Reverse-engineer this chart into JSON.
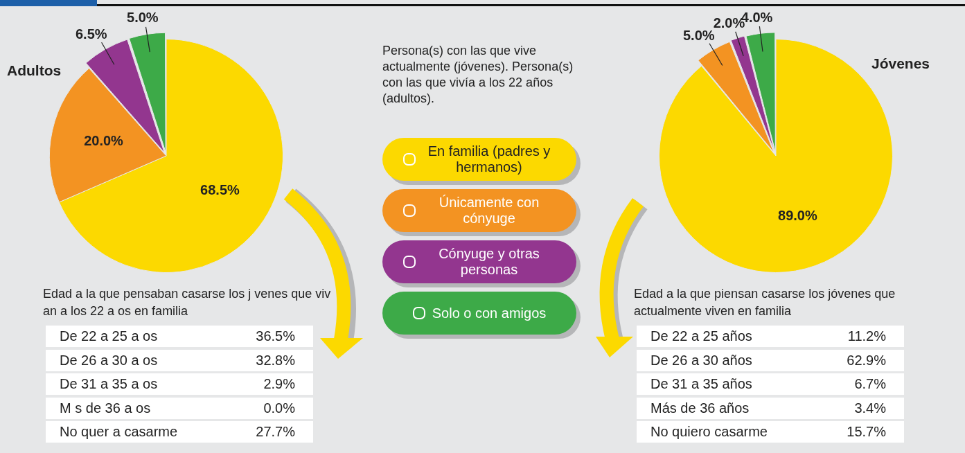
{
  "chart_data": [
    {
      "type": "pie",
      "title": "Adultos",
      "legend_title": "Persona(s) con las que vive actualmente (jóvenes). Persona(s) con las que vivía a los 22 años (adultos).",
      "legend": "right",
      "categories": [
        "En familia (padres y hermanos)",
        "Únicamente con cónyuge",
        "Cónyuge y otras personas",
        "Solo o con amigos"
      ],
      "values": [
        68.5,
        20.0,
        6.5,
        5.0
      ],
      "value_labels": [
        "68.5%",
        "20.0%",
        "6.5%",
        "5.0%"
      ],
      "colors": [
        "#fcd900",
        "#f39322",
        "#93368f",
        "#3daa48"
      ]
    },
    {
      "type": "pie",
      "title": "Jóvenes",
      "values": [
        89.0,
        5.0,
        2.0,
        4.0
      ],
      "value_labels": [
        "89.0%",
        "5.0%",
        "2.0%",
        "4.0%"
      ],
      "colors": [
        "#fcd900",
        "#f39322",
        "#93368f",
        "#3daa48"
      ]
    },
    {
      "type": "other",
      "title": "Edad a la que pensaban casarse los j venes que viv an a los 22 a os en familia",
      "categories": [
        "De 22 a 25 a os",
        "De 26 a 30 a os",
        "De 31 a 35 a os",
        "M s de 36 a os",
        "No quer a casarme"
      ],
      "value_labels": [
        "36.5%",
        "32.8%",
        "2.9%",
        "0.0%",
        "27.7%"
      ]
    },
    {
      "type": "other",
      "title": "Edad a la que piensan casarse los jóvenes que actualmente viven en familia",
      "categories": [
        "De 22 a 25 años",
        "De 26 a 30 años",
        "De 31 a 35 años",
        "Más de 36 años",
        "No quiero casarme"
      ],
      "value_labels": [
        "11.2%",
        "62.9%",
        "6.7%",
        "3.4%",
        "15.7%"
      ]
    }
  ]
}
